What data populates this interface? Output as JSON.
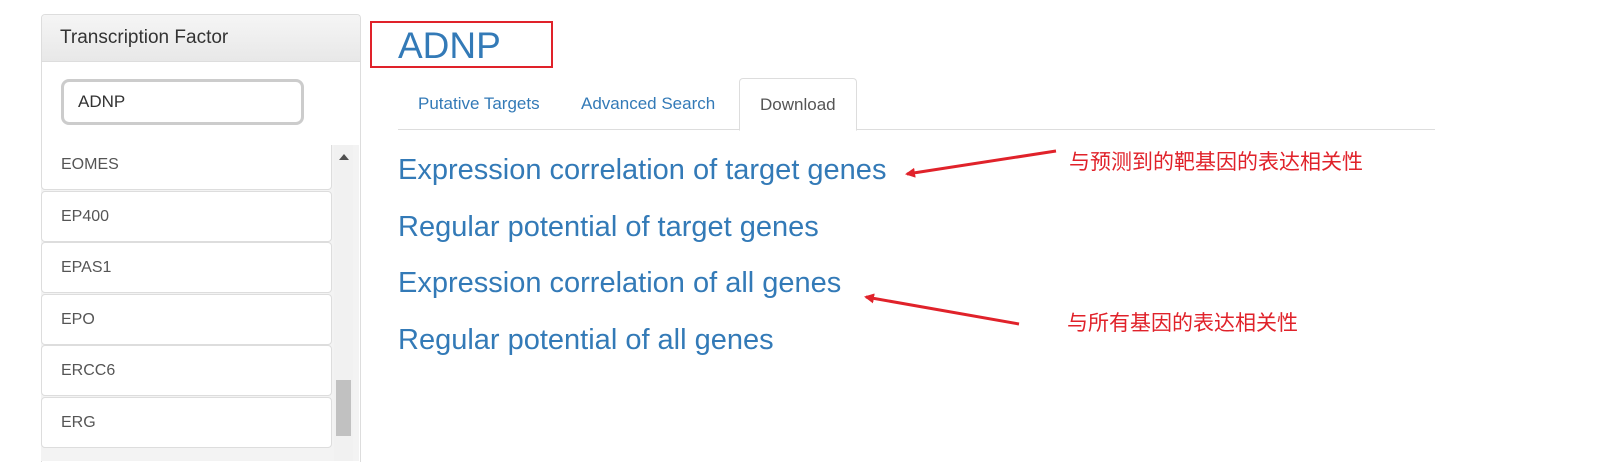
{
  "sidebar": {
    "header": "Transcription Factor",
    "search_value": "ADNP",
    "items": [
      {
        "label": "EOMES"
      },
      {
        "label": "EP400"
      },
      {
        "label": "EPAS1"
      },
      {
        "label": "EPO"
      },
      {
        "label": "ERCC6"
      },
      {
        "label": "ERG"
      }
    ]
  },
  "main": {
    "title": "ADNP",
    "tabs": [
      {
        "label": "Putative Targets"
      },
      {
        "label": "Advanced Search"
      },
      {
        "label": "Download",
        "active": true
      }
    ],
    "links": [
      {
        "label": "Expression correlation of target genes"
      },
      {
        "label": "Regular potential of target genes"
      },
      {
        "label": "Expression correlation of all genes"
      },
      {
        "label": "Regular potential of all genes"
      }
    ]
  },
  "annotations": [
    {
      "text": "与预测到的靶基因的表达相关性"
    },
    {
      "text": "与所有基因的表达相关性"
    }
  ],
  "colors": {
    "link": "#337ab7",
    "annotation": "#e0222a",
    "border": "#dddddd"
  }
}
